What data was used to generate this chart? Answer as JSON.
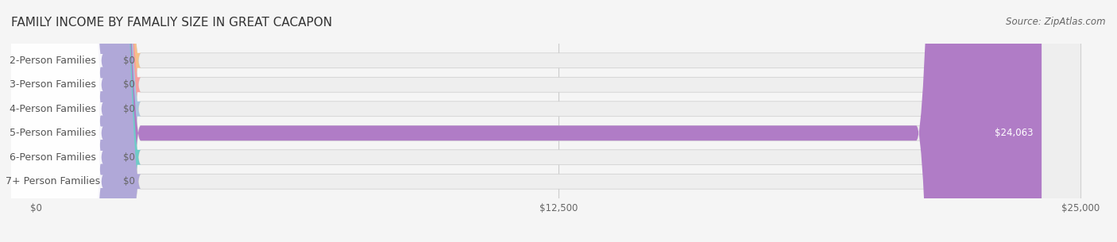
{
  "title": "FAMILY INCOME BY FAMALIY SIZE IN GREAT CACAPON",
  "source": "Source: ZipAtlas.com",
  "categories": [
    "2-Person Families",
    "3-Person Families",
    "4-Person Families",
    "5-Person Families",
    "6-Person Families",
    "7+ Person Families"
  ],
  "values": [
    0,
    0,
    0,
    24063,
    0,
    0
  ],
  "bar_colors": [
    "#f5c18a",
    "#f5a0a0",
    "#a8c4e0",
    "#b07cc6",
    "#6eccc8",
    "#b0a8d8"
  ],
  "label_colors": [
    "#d4925a",
    "#d47070",
    "#6090c0",
    "#8050a0",
    "#30a0a0",
    "#8080b8"
  ],
  "xlim": [
    0,
    25000
  ],
  "xticks": [
    0,
    12500,
    25000
  ],
  "xtick_labels": [
    "$0",
    "$12,500",
    "$25,000"
  ],
  "background_color": "#f5f5f5",
  "bar_bg_color": "#eeeeee",
  "title_fontsize": 11,
  "source_fontsize": 8.5,
  "label_fontsize": 9,
  "value_fontsize": 8.5,
  "bar_height": 0.62,
  "value_label_5person": "$24,063"
}
